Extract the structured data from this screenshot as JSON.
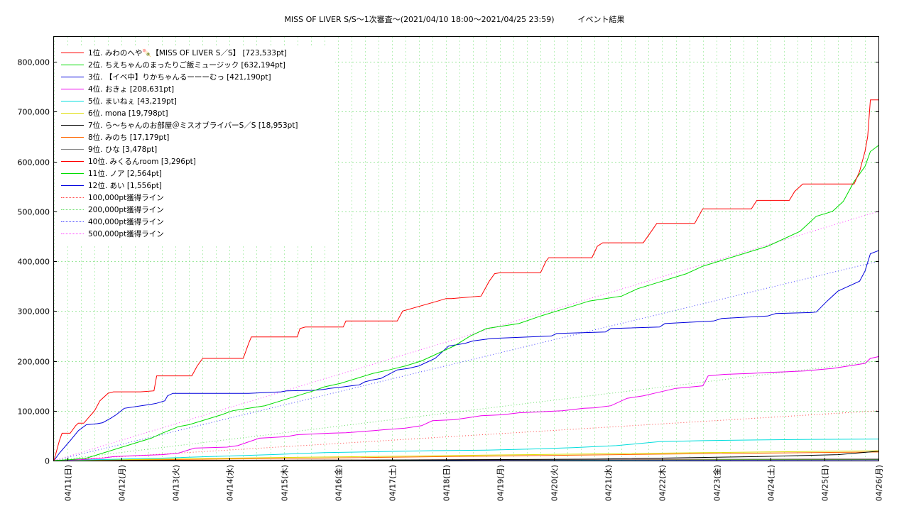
{
  "chart_data": {
    "type": "line",
    "title": "MISS OF LIVER S/S～1次審査～(2021/04/10 18:00～2021/04/25 23:59)　　　イベント結果",
    "ylim": [
      0,
      850000
    ],
    "yticks": [
      0,
      100000,
      200000,
      300000,
      400000,
      500000,
      600000,
      700000,
      800000
    ],
    "ytick_labels": [
      "0",
      "100,000",
      "200,000",
      "300,000",
      "400,000",
      "500,000",
      "600,000",
      "700,000",
      "800,000"
    ],
    "xlim": [
      0,
      15.25
    ],
    "xtick_labels": [
      "04/11(日)",
      "04/12(月)",
      "04/13(火)",
      "04/14(水)",
      "04/15(木)",
      "04/16(金)",
      "04/17(土)",
      "04/18(日)",
      "04/19(月)",
      "04/20(火)",
      "04/21(水)",
      "04/22(木)",
      "04/23(金)",
      "04/24(土)",
      "04/25(日)",
      "04/26(月)"
    ],
    "xticks": [
      0.25,
      1.25,
      2.25,
      3.25,
      4.25,
      5.25,
      6.25,
      7.25,
      8.25,
      9.25,
      10.25,
      11.25,
      12.25,
      13.25,
      14.25,
      15.25
    ],
    "grid": true,
    "legend_position": "top-left",
    "series": [
      {
        "name": "1位. みわのへや🍡【MISS OF LIVER S／S】 [723,533pt]",
        "color": "#ff0000",
        "style": "solid",
        "x": [
          0,
          0.1,
          0.15,
          0.3,
          0.4,
          0.45,
          0.55,
          0.75,
          0.85,
          1.0,
          1.1,
          1.6,
          1.85,
          1.9,
          2.55,
          2.65,
          2.75,
          3.5,
          3.6,
          3.65,
          4.5,
          4.55,
          4.65,
          5.35,
          5.4,
          6.35,
          6.45,
          7.1,
          7.25,
          7.35,
          7.9,
          8.05,
          8.15,
          8.25,
          8.35,
          9.0,
          9.1,
          9.15,
          9.95,
          10.05,
          10.15,
          10.9,
          11.05,
          11.15,
          11.85,
          12.0,
          12.9,
          13.0,
          13.6,
          13.7,
          13.85,
          14.75,
          14.8,
          14.9,
          15.0,
          15.05,
          15.1,
          15.25
        ],
        "y": [
          0,
          40000,
          55000,
          55000,
          70000,
          75000,
          75000,
          100000,
          120000,
          135000,
          138000,
          138000,
          140000,
          170000,
          170000,
          190000,
          205000,
          205000,
          235000,
          248000,
          248000,
          265000,
          268000,
          268000,
          280000,
          280000,
          300000,
          320000,
          325000,
          325000,
          330000,
          360000,
          375000,
          377000,
          377000,
          377000,
          400000,
          407000,
          407000,
          430000,
          437000,
          437000,
          460000,
          476000,
          476000,
          505000,
          505000,
          522000,
          522000,
          540000,
          555000,
          555000,
          555000,
          580000,
          620000,
          650000,
          723533,
          723533
        ]
      },
      {
        "name": "2位. ちえちゃんのまったりご飯ミュージック [632,194pt]",
        "color": "#00dd00",
        "style": "solid",
        "x": [
          0,
          0.3,
          0.6,
          0.9,
          1.2,
          1.5,
          1.8,
          2.0,
          2.3,
          2.5,
          2.8,
          3.1,
          3.3,
          3.6,
          3.9,
          4.2,
          4.5,
          4.8,
          5.0,
          5.3,
          5.6,
          5.9,
          6.2,
          6.5,
          6.8,
          7.1,
          7.4,
          7.7,
          8.0,
          8.3,
          8.6,
          9.0,
          9.3,
          9.6,
          9.9,
          10.2,
          10.5,
          10.8,
          11.1,
          11.4,
          11.7,
          12.0,
          12.3,
          12.6,
          12.9,
          13.2,
          13.5,
          13.8,
          14.1,
          14.4,
          14.6,
          14.8,
          15.0,
          15.1,
          15.25
        ],
        "y": [
          0,
          2000,
          5000,
          15000,
          25000,
          35000,
          45000,
          55000,
          68000,
          72000,
          82000,
          92000,
          100000,
          105000,
          110000,
          120000,
          130000,
          140000,
          148000,
          155000,
          165000,
          175000,
          182000,
          190000,
          200000,
          215000,
          230000,
          250000,
          265000,
          270000,
          275000,
          290000,
          300000,
          310000,
          320000,
          325000,
          330000,
          345000,
          355000,
          365000,
          375000,
          390000,
          400000,
          410000,
          420000,
          430000,
          445000,
          460000,
          490000,
          500000,
          520000,
          560000,
          590000,
          620000,
          632194
        ]
      },
      {
        "name": "3位. 【イベ中】りかちゃんるーーーむっ [421,190pt]",
        "color": "#0000dd",
        "style": "solid",
        "x": [
          0,
          0.1,
          0.3,
          0.45,
          0.6,
          0.8,
          0.9,
          1.05,
          1.15,
          1.3,
          1.8,
          1.9,
          2.05,
          2.1,
          2.2,
          2.9,
          3.5,
          3.6,
          4.2,
          4.3,
          4.8,
          5.0,
          5.1,
          5.35,
          5.5,
          5.65,
          5.75,
          5.9,
          6.05,
          6.35,
          6.55,
          6.75,
          6.85,
          7.05,
          7.15,
          7.3,
          7.6,
          7.75,
          8.1,
          9.2,
          9.3,
          10.2,
          10.3,
          11.2,
          11.3,
          12.2,
          12.35,
          13.2,
          13.35,
          14.0,
          14.1,
          14.3,
          14.5,
          14.7,
          14.9,
          15.0,
          15.1,
          15.25
        ],
        "y": [
          0,
          15000,
          40000,
          60000,
          72000,
          74000,
          76000,
          85000,
          92000,
          105000,
          113000,
          115000,
          120000,
          130000,
          135000,
          135000,
          135000,
          135000,
          138000,
          140000,
          141000,
          143000,
          145000,
          148000,
          150000,
          152000,
          158000,
          162000,
          165000,
          182000,
          185000,
          190000,
          195000,
          205000,
          215000,
          230000,
          235000,
          240000,
          245000,
          250000,
          255000,
          258000,
          265000,
          268000,
          275000,
          280000,
          285000,
          290000,
          295000,
          297000,
          298000,
          320000,
          340000,
          350000,
          360000,
          380000,
          415000,
          421190
        ]
      },
      {
        "name": "4位. おきょ [208,631pt]",
        "color": "#ee00ee",
        "style": "solid",
        "x": [
          0,
          0.5,
          0.9,
          1.1,
          1.5,
          2.0,
          2.3,
          2.6,
          3.2,
          3.4,
          3.8,
          4.3,
          4.5,
          5.1,
          5.4,
          5.9,
          6.1,
          6.5,
          6.8,
          7.0,
          7.4,
          7.6,
          7.9,
          8.3,
          8.6,
          9.0,
          9.4,
          9.8,
          10.0,
          10.3,
          10.6,
          10.9,
          11.1,
          11.5,
          11.8,
          12.0,
          12.1,
          12.4,
          12.9,
          13.2,
          13.5,
          13.9,
          14.4,
          14.7,
          15.0,
          15.1,
          15.25
        ],
        "y": [
          0,
          2000,
          5000,
          8000,
          10000,
          12000,
          15000,
          25000,
          27000,
          30000,
          45000,
          48000,
          52000,
          55000,
          56000,
          60000,
          62000,
          65000,
          70000,
          80000,
          82000,
          85000,
          90000,
          92000,
          96000,
          98000,
          100000,
          105000,
          106000,
          110000,
          125000,
          130000,
          135000,
          145000,
          148000,
          150000,
          170000,
          173000,
          175000,
          177000,
          178000,
          180000,
          185000,
          190000,
          195000,
          205000,
          208631
        ]
      },
      {
        "name": "5位. まいねぇ [43,219pt]",
        "color": "#00dddd",
        "style": "solid",
        "x": [
          0,
          2.0,
          4.0,
          5.0,
          6.0,
          7.0,
          8.0,
          8.8,
          9.6,
          10.4,
          11.2,
          12.0,
          13.0,
          14.0,
          15.25
        ],
        "y": [
          0,
          5000,
          12000,
          16000,
          18000,
          20000,
          21000,
          23000,
          26000,
          30000,
          38000,
          40000,
          41500,
          42500,
          43219
        ]
      },
      {
        "name": "6位. mona [19,798pt]",
        "color": "#dddd00",
        "style": "solid",
        "x": [
          0,
          4.0,
          8.0,
          12.0,
          15.25
        ],
        "y": [
          0,
          6000,
          11000,
          16000,
          19798
        ]
      },
      {
        "name": "7位. ら～ちゃんのお部屋＠ミスオブライバーS／S [18,953pt]",
        "color": "#000000",
        "style": "solid",
        "x": [
          0,
          6.0,
          10.0,
          13.0,
          14.5,
          15.25
        ],
        "y": [
          0,
          1000,
          3000,
          8000,
          12000,
          18953
        ]
      },
      {
        "name": "8位. みのち [17,179pt]",
        "color": "#ff6600",
        "style": "solid",
        "x": [
          0,
          4.0,
          8.0,
          12.0,
          15.25
        ],
        "y": [
          0,
          4000,
          9000,
          14000,
          17179
        ]
      },
      {
        "name": "9位. ひな [3,478pt]",
        "color": "#888888",
        "style": "solid",
        "x": [
          0,
          15.25
        ],
        "y": [
          0,
          3478
        ]
      },
      {
        "name": "10位. みくるんroom [3,296pt]",
        "color": "#ff0000",
        "style": "solid",
        "x": [
          0,
          15.25
        ],
        "y": [
          0,
          3296
        ]
      },
      {
        "name": "11位. ノア [2,564pt]",
        "color": "#00dd00",
        "style": "solid",
        "x": [
          0,
          15.25
        ],
        "y": [
          0,
          2564
        ]
      },
      {
        "name": "12位. あい [1,556pt]",
        "color": "#0000dd",
        "style": "solid",
        "x": [
          0,
          15.25
        ],
        "y": [
          0,
          1556
        ]
      },
      {
        "name": "100,000pt獲得ライン",
        "color": "#ff4444",
        "style": "dotted",
        "x": [
          0,
          15.25
        ],
        "y": [
          0,
          100000
        ]
      },
      {
        "name": "200,000pt獲得ライン",
        "color": "#66dd66",
        "style": "dotted",
        "x": [
          0,
          15.25
        ],
        "y": [
          0,
          200000
        ]
      },
      {
        "name": "400,000pt獲得ライン",
        "color": "#4444ff",
        "style": "dotted",
        "x": [
          0,
          15.25
        ],
        "y": [
          0,
          400000
        ]
      },
      {
        "name": "500,000pt獲得ライン",
        "color": "#ff44ff",
        "style": "dotted",
        "x": [
          0,
          15.25
        ],
        "y": [
          0,
          500000
        ]
      }
    ]
  }
}
